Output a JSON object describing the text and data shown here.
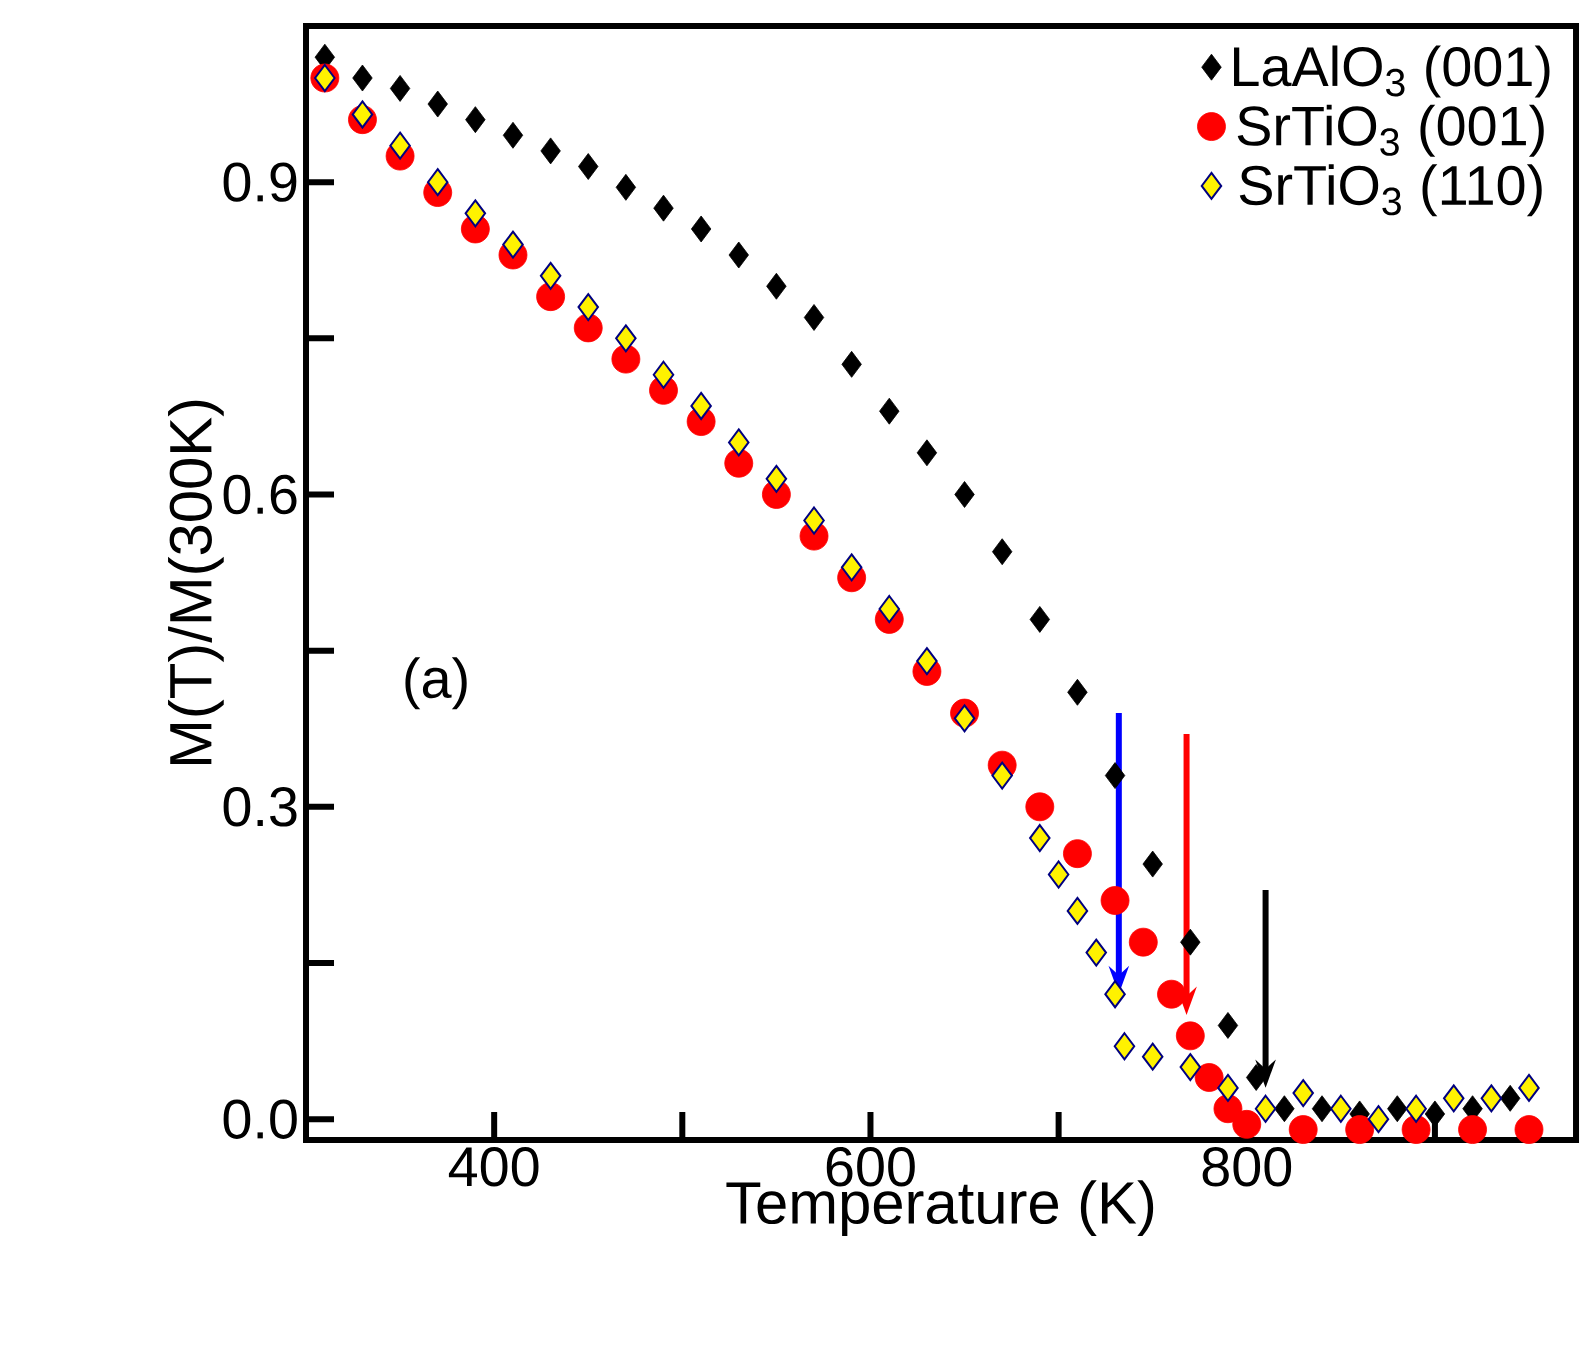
{
  "chart_data": {
    "type": "scatter",
    "xlabel": "Temperature (K)",
    "ylabel": "M(T)/M(300K)",
    "xlim": [
      300,
      975
    ],
    "ylim": [
      -0.02,
      1.05
    ],
    "xticks": [
      400,
      {
        "value": 500,
        "label": null
      },
      600,
      {
        "value": 700,
        "label": null
      },
      800,
      {
        "value": 900,
        "label": null
      }
    ],
    "yticks": [
      "0.0",
      {
        "value": 0.15,
        "label": null
      },
      0.3,
      {
        "value": 0.45,
        "label": null
      },
      0.6,
      {
        "value": 0.75,
        "label": null
      },
      0.9
    ],
    "legend": "top right",
    "grid": false,
    "annotations": [
      "(a)"
    ],
    "series": [
      {
        "name": "LaAlO$_{3}$ (001)",
        "color": "#000000",
        "marker": "diamond",
        "x": [
          310,
          330,
          350,
          370,
          390,
          410,
          430,
          450,
          470,
          490,
          510,
          530,
          550,
          570,
          590,
          610,
          630,
          650,
          670,
          690,
          710,
          730,
          750,
          770,
          790,
          805,
          820,
          840,
          860,
          880,
          900,
          920,
          940
        ],
        "values": [
          1.02,
          1.0,
          0.99,
          0.975,
          0.96,
          0.945,
          0.93,
          0.915,
          0.895,
          0.875,
          0.855,
          0.83,
          0.8,
          0.77,
          0.725,
          0.68,
          0.64,
          0.6,
          0.545,
          0.48,
          0.41,
          0.33,
          0.245,
          0.17,
          0.09,
          0.04,
          0.01,
          0.01,
          0.005,
          0.01,
          0.005,
          0.01,
          0.02
        ]
      },
      {
        "name": "SrTiO$_{3}$ (001)",
        "color": "#ff0000",
        "marker": "circle",
        "x": [
          310,
          330,
          350,
          370,
          390,
          410,
          430,
          450,
          470,
          490,
          510,
          530,
          550,
          570,
          590,
          610,
          630,
          650,
          670,
          690,
          710,
          730,
          745,
          760,
          770,
          780,
          790,
          800,
          830,
          860,
          890,
          920,
          950
        ],
        "values": [
          1.0,
          0.96,
          0.925,
          0.89,
          0.855,
          0.83,
          0.79,
          0.76,
          0.73,
          0.7,
          0.67,
          0.63,
          0.6,
          0.56,
          0.52,
          0.48,
          0.43,
          0.39,
          0.34,
          0.3,
          0.255,
          0.21,
          0.17,
          0.12,
          0.08,
          0.04,
          0.01,
          -0.005,
          -0.01,
          -0.01,
          -0.01,
          -0.01,
          -0.01
        ]
      },
      {
        "name": "SrTiO$_{3}$ (110)",
        "color": "#000080",
        "marker": "diamond",
        "x": [
          310,
          330,
          350,
          370,
          390,
          410,
          430,
          450,
          470,
          490,
          510,
          530,
          550,
          570,
          590,
          610,
          630,
          650,
          670,
          690,
          700,
          710,
          720,
          730,
          735,
          750,
          770,
          790,
          810,
          830,
          850,
          870,
          890,
          910,
          930,
          950
        ],
        "values": [
          1.0,
          0.965,
          0.935,
          0.9,
          0.87,
          0.84,
          0.81,
          0.78,
          0.75,
          0.715,
          0.685,
          0.65,
          0.615,
          0.575,
          0.53,
          0.49,
          0.44,
          0.385,
          0.33,
          0.27,
          0.235,
          0.2,
          0.16,
          0.12,
          0.07,
          0.06,
          0.05,
          0.03,
          0.01,
          0.025,
          0.01,
          0.0,
          0.01,
          0.02,
          0.02,
          0.03
        ]
      }
    ]
  }
}
